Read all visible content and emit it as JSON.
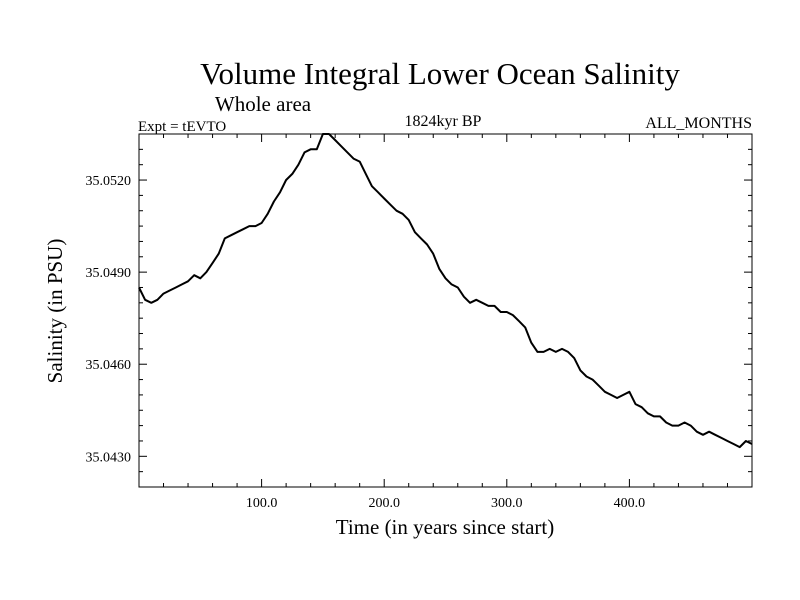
{
  "chart_data": {
    "type": "line",
    "title": "Volume Integral Lower Ocean Salinity",
    "subtitle": "Whole area",
    "left_note": "Expt = tEVTO",
    "center_note": "1824kyr BP",
    "right_note": "ALL_MONTHS",
    "xlabel": "Time (in years since start)",
    "ylabel": "Salinity (in PSU)",
    "xlim": [
      0,
      500
    ],
    "ylim": [
      35.042,
      35.0535
    ],
    "x_ticks": [
      100,
      200,
      300,
      400
    ],
    "x_tick_labels": [
      "100.0",
      "200.0",
      "300.0",
      "400.0"
    ],
    "y_ticks": [
      35.043,
      35.046,
      35.049,
      35.052
    ],
    "y_tick_labels": [
      "35.0430",
      "35.0460",
      "35.0490",
      "35.0520"
    ],
    "grid": false,
    "series": [
      {
        "name": "Salinity",
        "x": [
          0,
          5,
          10,
          15,
          20,
          25,
          30,
          35,
          40,
          45,
          50,
          55,
          60,
          65,
          70,
          75,
          80,
          85,
          90,
          95,
          100,
          105,
          110,
          115,
          120,
          125,
          130,
          135,
          140,
          145,
          150,
          155,
          160,
          165,
          170,
          175,
          180,
          185,
          190,
          195,
          200,
          205,
          210,
          215,
          220,
          225,
          230,
          235,
          240,
          245,
          250,
          255,
          260,
          265,
          270,
          275,
          280,
          285,
          290,
          295,
          300,
          305,
          310,
          315,
          320,
          325,
          330,
          335,
          340,
          345,
          350,
          355,
          360,
          365,
          370,
          375,
          380,
          385,
          390,
          395,
          400,
          405,
          410,
          415,
          420,
          425,
          430,
          435,
          440,
          445,
          450,
          455,
          460,
          465,
          470,
          475,
          480,
          485,
          490,
          495,
          500
        ],
        "values": [
          35.0485,
          35.0481,
          35.048,
          35.0481,
          35.0483,
          35.0484,
          35.0485,
          35.0486,
          35.0487,
          35.0489,
          35.0488,
          35.049,
          35.0493,
          35.0496,
          35.0501,
          35.0502,
          35.0503,
          35.0504,
          35.0505,
          35.0505,
          35.0506,
          35.0509,
          35.0513,
          35.0516,
          35.052,
          35.0522,
          35.0525,
          35.0529,
          35.053,
          35.053,
          35.0535,
          35.0535,
          35.0533,
          35.0531,
          35.0529,
          35.0527,
          35.0526,
          35.0522,
          35.0518,
          35.0516,
          35.0514,
          35.0512,
          35.051,
          35.0509,
          35.0507,
          35.0503,
          35.0501,
          35.0499,
          35.0496,
          35.0491,
          35.0488,
          35.0486,
          35.0485,
          35.0482,
          35.048,
          35.0481,
          35.048,
          35.0479,
          35.0479,
          35.0477,
          35.0477,
          35.0476,
          35.0474,
          35.0472,
          35.0467,
          35.0464,
          35.0464,
          35.0465,
          35.0464,
          35.0465,
          35.0464,
          35.0462,
          35.0458,
          35.0456,
          35.0455,
          35.0453,
          35.0451,
          35.045,
          35.0449,
          35.045,
          35.0451,
          35.0447,
          35.0446,
          35.0444,
          35.0443,
          35.0443,
          35.0441,
          35.044,
          35.044,
          35.0441,
          35.044,
          35.0438,
          35.0437,
          35.0438,
          35.0437,
          35.0436,
          35.0435,
          35.0434,
          35.0433,
          35.0435,
          35.0434
        ]
      }
    ]
  }
}
